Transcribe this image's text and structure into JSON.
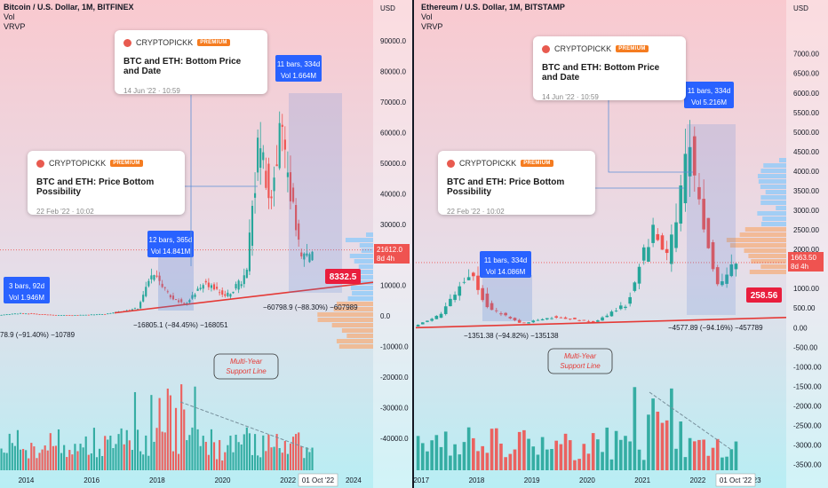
{
  "left": {
    "header": {
      "title": "Bitcoin / U.S. Dollar, 1M, BITFINEX",
      "vol": "Vol",
      "vrvp": "VRVP"
    },
    "price_label": {
      "value": "21612.0",
      "sub": "8d 4h"
    },
    "bottom_marker": "8332.5",
    "date_badge": "01 Oct '22",
    "bars_boxes": [
      {
        "l1": "3 bars, 92d",
        "l2": "Vol 1.946M"
      },
      {
        "l1": "12 bars, 365d",
        "l2": "Vol 14.841M"
      },
      {
        "l1": "11 bars, 334d",
        "l2": "Vol 1.664M"
      }
    ],
    "drop_labels": [
      "78.9 (−91.40%) −10789",
      "−16805.1 (−84.45%) −168051",
      "−60798.9 (−88.30%) −607989"
    ],
    "support_label": [
      "Multi-Year",
      "Support Line"
    ],
    "cards": [
      {
        "handle": "CRYPTOPICKK",
        "badge": "PREMIUM",
        "title": "BTC and ETH: Bottom Price and Date",
        "date": "14 Jun '22 · 10:59"
      },
      {
        "handle": "CRYPTOPICKK",
        "badge": "PREMIUM",
        "title": "BTC and ETH: Price Bottom Possibility",
        "date": "22 Feb '22 · 10:02"
      }
    ]
  },
  "right": {
    "header": {
      "title": "Ethereum / U.S. Dollar, 1M, BITSTAMP",
      "vol": "Vol",
      "vrvp": "VRVP"
    },
    "price_label": {
      "value": "1663.50",
      "sub": "8d 4h"
    },
    "bottom_marker": "258.56",
    "date_badge": "01 Oct '22",
    "bars_boxes": [
      {
        "l1": "11 bars, 334d",
        "l2": "Vol 14.086M"
      },
      {
        "l1": "11 bars, 334d",
        "l2": "Vol 5.216M"
      }
    ],
    "drop_labels": [
      "−1351.38 (−94.82%) −135138",
      "−4577.89 (−94.16%) −457789"
    ],
    "support_label": [
      "Multi-Year",
      "Support Line"
    ],
    "cards": [
      {
        "handle": "CRYPTOPICKK",
        "badge": "PREMIUM",
        "title": "BTC and ETH: Bottom Price and Date",
        "date": "14 Jun '22 · 10:59"
      },
      {
        "handle": "CRYPTOPICKK",
        "badge": "PREMIUM",
        "title": "BTC and ETH: Price Bottom Possibility",
        "date": "22 Feb '22 · 10:02"
      }
    ]
  },
  "chart_data": [
    {
      "type": "candlestick",
      "title": "Bitcoin / U.S. Dollar, 1M, BITFINEX",
      "y_unit": "USD",
      "ylim": [
        -45000,
        95000
      ],
      "y_ticks": [
        "90000.0",
        "80000.0",
        "70000.0",
        "60000.0",
        "50000.0",
        "40000.0",
        "30000.0",
        "20000.0",
        "10000.0",
        "0.0",
        "-10000.0",
        "-20000.0",
        "-30000.0",
        "-40000.0"
      ],
      "x_ticks": [
        "2014",
        "2016",
        "2018",
        "2020",
        "2022",
        "2024"
      ],
      "x_tick_years": [
        2014,
        2016,
        2018,
        2020,
        2022,
        2024
      ],
      "xlim": [
        2013.2,
        2024.6
      ],
      "trend": [
        [
          2013.2,
          200
        ],
        [
          2013.9,
          900
        ],
        [
          2014.9,
          320
        ],
        [
          2015.5,
          230
        ],
        [
          2016.5,
          600
        ],
        [
          2017.5,
          2500
        ],
        [
          2017.95,
          14000
        ],
        [
          2018.5,
          6500
        ],
        [
          2018.95,
          3700
        ],
        [
          2019.5,
          11000
        ],
        [
          2020.2,
          6500
        ],
        [
          2020.8,
          13000
        ],
        [
          2021.2,
          58000
        ],
        [
          2021.55,
          35000
        ],
        [
          2021.85,
          61000
        ],
        [
          2022.45,
          20000
        ],
        [
          2022.75,
          19500
        ]
      ],
      "price_line": 21612,
      "support_line": [
        [
          2016.7,
          1000
        ],
        [
          2022.8,
          11000
        ]
      ],
      "volume_trend": "declining",
      "annotations": [
        "3 bars, 92d",
        "12 bars, 365d",
        "11 bars, 334d",
        "Multi-Year Support Line",
        "8332.5"
      ]
    },
    {
      "type": "candlestick",
      "title": "Ethereum / U.S. Dollar, 1M, BITSTAMP",
      "y_unit": "USD",
      "ylim": [
        -3600,
        7900
      ],
      "y_ticks": [
        "7000.00",
        "6500.00",
        "6000.00",
        "5500.00",
        "5000.00",
        "4500.00",
        "4000.00",
        "3500.00",
        "3000.00",
        "2500.00",
        "2000.00",
        "1500.00",
        "1000.00",
        "500.00",
        "0.00",
        "-500.00",
        "-1000.00",
        "-1500.00",
        "-2000.00",
        "-2500.00",
        "-3000.00",
        "-3500.00"
      ],
      "x_ticks": [
        "2017",
        "2018",
        "2019",
        "2020",
        "2021",
        "2022",
        "2023"
      ],
      "x_tick_years": [
        2017,
        2018,
        2019,
        2020,
        2021,
        2022,
        2023
      ],
      "xlim": [
        2016.9,
        2023.6
      ],
      "trend": [
        [
          2016.9,
          10
        ],
        [
          2017.4,
          300
        ],
        [
          2017.95,
          1400
        ],
        [
          2018.3,
          500
        ],
        [
          2018.9,
          110
        ],
        [
          2019.5,
          280
        ],
        [
          2020.2,
          140
        ],
        [
          2020.8,
          600
        ],
        [
          2021.3,
          2700
        ],
        [
          2021.55,
          1700
        ],
        [
          2021.9,
          4700
        ],
        [
          2022.45,
          1000
        ],
        [
          2022.75,
          1600
        ]
      ],
      "price_line": 1663.5,
      "support_line": [
        [
          2016.9,
          0
        ],
        [
          2022.9,
          260
        ]
      ],
      "volume_trend": "declining",
      "annotations": [
        "11 bars, 334d",
        "Multi-Year Support Line",
        "258.56"
      ]
    }
  ]
}
